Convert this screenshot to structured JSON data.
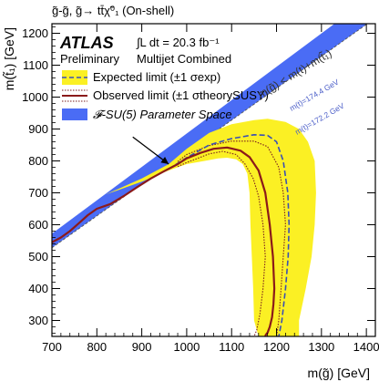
{
  "page_header": "g̃-g̃, g̃→ tt̄χ̃⁰₁ (On-shell)",
  "colors": {
    "expected_band": "#fbf024",
    "expected_line": "#3a4fb5",
    "observed_line": "#8b1a1a",
    "observed_band": "#7a1f1f",
    "fsu5_band": "#4a6cf5",
    "kin_line": "#4a5dc8",
    "axis": "#000000"
  },
  "chart_data": {
    "type": "line",
    "xlabel": "m(g̃) [GeV]",
    "ylabel": "m(t̃₁) [GeV]",
    "xlim": [
      700,
      1420
    ],
    "ylim": [
      250,
      1230
    ],
    "x_ticks": [
      700,
      800,
      900,
      1000,
      1100,
      1200,
      1300,
      1400
    ],
    "y_ticks": [
      300,
      400,
      500,
      600,
      700,
      800,
      900,
      1000,
      1100,
      1200
    ],
    "legend_position": "top-left",
    "atlas_label": "ATLAS",
    "preliminary_label": "Preliminary",
    "lumi_label": "∫L dt = 20.3 fb⁻¹",
    "analysis_label": "Multijet Combined",
    "legend": [
      {
        "key": "expected",
        "label": "Expected limit (±1 σexp)"
      },
      {
        "key": "observed",
        "label": "Observed limit (±1 σtheorySUSY)"
      },
      {
        "key": "fsu5",
        "label": "𝓕-SU(5) Parameter Space"
      }
    ],
    "annotations": {
      "kin_label": "m(g̃) < m(t)+m(t̃₁)",
      "mt_upper": "m(t)=174.4 GeV",
      "mt_lower": "m(t)=172.2 GeV"
    },
    "kinematic_limit": {
      "x": [
        700,
        1420
      ],
      "y": [
        527.8,
        1247.8
      ]
    },
    "fsu5_band": {
      "x": [
        700,
        1420
      ],
      "lower": [
        527.8,
        1247.8
      ],
      "upper": [
        572.0,
        1325.0
      ]
    },
    "expected_band": {
      "x": [
        820,
        900,
        960,
        1000,
        1050,
        1100,
        1150,
        1180,
        1220,
        1250,
        1270,
        1285,
        1288,
        1285,
        1278,
        1265,
        1250,
        1250,
        1200,
        1160,
        1150,
        1148,
        1145,
        1142,
        1140,
        1135,
        1125,
        1110,
        1090,
        1070,
        1040,
        1000,
        960,
        900,
        820
      ],
      "y": [
        695,
        745,
        790,
        838,
        888,
        915,
        928,
        932,
        922,
        900,
        860,
        800,
        700,
        600,
        500,
        400,
        300,
        250,
        250,
        250,
        300,
        400,
        500,
        600,
        700,
        760,
        790,
        805,
        810,
        808,
        800,
        790,
        770,
        735,
        695
      ]
    },
    "expected_limit": {
      "x": [
        960,
        1000,
        1050,
        1100,
        1150,
        1180,
        1200,
        1215,
        1225,
        1228,
        1226,
        1220,
        1212,
        1205,
        1200
      ],
      "y": [
        775,
        810,
        850,
        870,
        882,
        880,
        860,
        800,
        700,
        600,
        500,
        400,
        300,
        250,
        250
      ]
    },
    "observed_limit": {
      "x": [
        700,
        720,
        740,
        760,
        780,
        800,
        830,
        860,
        890,
        920,
        950,
        980,
        1000,
        1030,
        1060,
        1090,
        1120,
        1140,
        1160,
        1175,
        1185,
        1192,
        1195,
        1193,
        1190,
        1185,
        1180,
        1176,
        1175
      ],
      "y": [
        545,
        560,
        580,
        605,
        630,
        650,
        665,
        690,
        718,
        745,
        768,
        790,
        808,
        825,
        838,
        842,
        832,
        812,
        770,
        700,
        600,
        500,
        400,
        350,
        310,
        280,
        262,
        255,
        250
      ]
    },
    "observed_band_upper": {
      "x": [
        980,
        1000,
        1050,
        1100,
        1150,
        1180,
        1205,
        1215,
        1220,
        1215,
        1210,
        1205,
        1200
      ],
      "y": [
        798,
        820,
        848,
        862,
        862,
        845,
        780,
        700,
        600,
        500,
        400,
        300,
        250
      ]
    },
    "observed_band_lower": {
      "x": [
        980,
        1000,
        1050,
        1080,
        1110,
        1130,
        1148,
        1160,
        1170,
        1175,
        1170,
        1163,
        1156,
        1150
      ],
      "y": [
        782,
        795,
        822,
        830,
        820,
        790,
        745,
        690,
        600,
        500,
        400,
        320,
        270,
        250
      ]
    },
    "arrow": {
      "from": [
        880,
        875
      ],
      "to": [
        960,
        790
      ]
    }
  }
}
